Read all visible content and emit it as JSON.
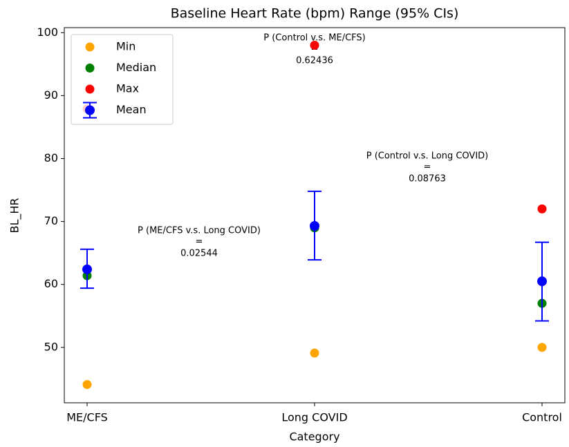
{
  "chart_data": {
    "type": "scatter",
    "title": "Baseline Heart Rate (bpm) Range (95% CIs)",
    "x_label": "Category",
    "y_label": "BL_HR",
    "categories": [
      "ME/CFS",
      "Long COVID",
      "Control"
    ],
    "series": [
      {
        "name": "Min",
        "color": "orange",
        "values": [
          44.1,
          49.1,
          50.0
        ]
      },
      {
        "name": "Median",
        "color": "green",
        "values": [
          61.4,
          69.0,
          57.0
        ]
      },
      {
        "name": "Max",
        "color": "red",
        "values": [
          87.9,
          98.0,
          72.0
        ]
      },
      {
        "name": "Mean",
        "color": "blue",
        "values": [
          62.4,
          69.3,
          60.5
        ],
        "ci_low": [
          59.4,
          63.9,
          54.2
        ],
        "ci_high": [
          65.6,
          74.8,
          66.7
        ]
      }
    ],
    "ylim": [
      41.2,
      100.8
    ],
    "yticks": [
      50,
      60,
      70,
      80,
      90,
      100
    ],
    "legend": "upper left",
    "annotations": [
      {
        "lines": [
          "P (Control v.s. ME/CFS)",
          "=",
          "0.62436"
        ]
      },
      {
        "lines": [
          "P (Control v.s. Long COVID)",
          "=",
          "0.08763"
        ]
      },
      {
        "lines": [
          "P (ME/CFS v.s. Long COVID)",
          "=",
          "0.02544"
        ]
      }
    ]
  }
}
